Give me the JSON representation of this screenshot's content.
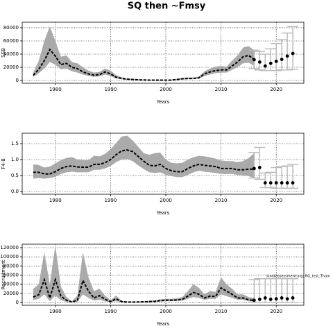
{
  "title": "SQ then ~Fmsy",
  "chart_data": [
    {
      "type": "line",
      "ylabel": "SSB",
      "xlabel": "Years",
      "x": [
        1976,
        1977,
        1978,
        1979,
        1980,
        1981,
        1982,
        1983,
        1984,
        1985,
        1986,
        1987,
        1988,
        1989,
        1990,
        1991,
        1992,
        1993,
        1994,
        1995,
        1996,
        1997,
        1998,
        1999,
        2000,
        2001,
        2002,
        2003,
        2004,
        2005,
        2006,
        2007,
        2008,
        2009,
        2010,
        2011,
        2012,
        2013,
        2014,
        2015,
        2016
      ],
      "values": [
        8000,
        17000,
        30000,
        47000,
        37000,
        24000,
        26000,
        20000,
        18000,
        13000,
        10000,
        8000,
        9000,
        13000,
        10000,
        5000,
        3000,
        2000,
        1500,
        1000,
        800,
        600,
        500,
        500,
        500,
        600,
        1500,
        2500,
        3000,
        3000,
        4000,
        10000,
        13000,
        15000,
        16000,
        16000,
        22000,
        28000,
        36000,
        38000,
        32000
      ],
      "upper": [
        12000,
        30000,
        60000,
        82000,
        60000,
        36000,
        38000,
        28000,
        26000,
        20000,
        15000,
        12000,
        13000,
        18000,
        15000,
        8000,
        5000,
        3000,
        2500,
        1800,
        1500,
        1200,
        1000,
        1000,
        1000,
        1200,
        2500,
        4000,
        4500,
        4500,
        6000,
        14000,
        18000,
        21000,
        22000,
        21000,
        30000,
        38000,
        50000,
        52000,
        46000
      ],
      "lower": [
        5000,
        11000,
        18000,
        28000,
        24000,
        17000,
        18000,
        14000,
        12000,
        9000,
        7000,
        5500,
        6000,
        9000,
        7000,
        3000,
        1800,
        1200,
        900,
        600,
        400,
        300,
        250,
        250,
        250,
        300,
        900,
        1600,
        2000,
        2000,
        2800,
        7000,
        9000,
        11000,
        12000,
        12000,
        16000,
        20000,
        26000,
        27000,
        22000
      ],
      "proj_x": [
        2016,
        2017,
        2018,
        2019,
        2020,
        2021,
        2022,
        2023
      ],
      "proj_values": [
        31500,
        28000,
        22000,
        26000,
        29000,
        32000,
        37000,
        41000
      ],
      "proj_upper": [
        46000,
        44000,
        40000,
        48000,
        56000,
        62000,
        72000,
        82000
      ],
      "proj_lower": [
        18000,
        16000,
        15000,
        15000,
        15000,
        16000,
        16000,
        17000
      ],
      "band_color": "#aaaaaa",
      "line_color": "#000000",
      "proj_color": "#bbbbbb",
      "xlim": [
        1974,
        2025
      ],
      "xticks": [
        1980,
        1990,
        2000,
        2010,
        2020
      ],
      "ylim": [
        -4200,
        88400
      ],
      "yticks": [
        0,
        20000,
        40000,
        60000,
        80000
      ],
      "grid": true
    },
    {
      "type": "line",
      "ylabel": "F4-8",
      "xlabel": "Years",
      "x": [
        1976,
        1977,
        1978,
        1979,
        1980,
        1981,
        1982,
        1983,
        1984,
        1985,
        1986,
        1987,
        1988,
        1989,
        1990,
        1991,
        1992,
        1993,
        1994,
        1995,
        1996,
        1997,
        1998,
        1999,
        2000,
        2001,
        2002,
        2003,
        2004,
        2005,
        2006,
        2007,
        2008,
        2009,
        2010,
        2011,
        2012,
        2013,
        2014,
        2015,
        2016
      ],
      "values": [
        0.6,
        0.6,
        0.55,
        0.55,
        0.62,
        0.72,
        0.78,
        0.8,
        0.77,
        0.76,
        0.76,
        0.85,
        0.85,
        0.9,
        1.0,
        1.15,
        1.27,
        1.3,
        1.25,
        1.1,
        0.95,
        0.82,
        0.8,
        0.85,
        0.72,
        0.65,
        0.62,
        0.62,
        0.72,
        0.8,
        0.85,
        0.82,
        0.8,
        0.78,
        0.72,
        0.72,
        0.72,
        0.68,
        0.68,
        0.7,
        0.7
      ],
      "upper": [
        0.85,
        0.83,
        0.75,
        0.78,
        0.88,
        0.98,
        1.05,
        1.08,
        1.0,
        0.98,
        0.98,
        1.12,
        1.1,
        1.18,
        1.32,
        1.52,
        1.72,
        1.75,
        1.6,
        1.4,
        1.2,
        1.15,
        1.2,
        1.22,
        1.0,
        0.9,
        0.88,
        0.9,
        1.0,
        1.07,
        1.12,
        1.1,
        1.07,
        1.03,
        0.97,
        0.95,
        0.95,
        0.92,
        0.95,
        1.05,
        1.2
      ],
      "lower": [
        0.4,
        0.42,
        0.4,
        0.42,
        0.46,
        0.55,
        0.6,
        0.62,
        0.6,
        0.6,
        0.6,
        0.68,
        0.68,
        0.72,
        0.8,
        0.92,
        1.0,
        1.02,
        0.95,
        0.82,
        0.7,
        0.6,
        0.58,
        0.6,
        0.52,
        0.48,
        0.45,
        0.45,
        0.52,
        0.6,
        0.65,
        0.62,
        0.6,
        0.58,
        0.55,
        0.55,
        0.55,
        0.52,
        0.5,
        0.48,
        0.42
      ],
      "proj_x": [
        2016,
        2017,
        2018,
        2019,
        2020,
        2021,
        2022,
        2023
      ],
      "proj_values": [
        0.72,
        0.75,
        0.27,
        0.27,
        0.27,
        0.27,
        0.27,
        0.27
      ],
      "proj_upper": [
        1.22,
        1.38,
        0.58,
        0.6,
        0.75,
        0.78,
        0.8,
        0.85
      ],
      "proj_lower": [
        0.42,
        0.38,
        0.12,
        0.12,
        0.1,
        0.1,
        0.1,
        0.1
      ],
      "band_color": "#aaaaaa",
      "line_color": "#000000",
      "proj_color": "#bbbbbb",
      "xlim": [
        1974,
        2025
      ],
      "xticks": [
        1980,
        1990,
        2000,
        2010,
        2020
      ],
      "ylim": [
        -0.087,
        1.826
      ],
      "yticks": [
        {
          "value": 0,
          "label": "0.0"
        },
        0.5,
        {
          "value": 1,
          "label": "1.0"
        },
        1.5
      ],
      "grid": true
    },
    {
      "type": "line",
      "ylabel": "Recruitment",
      "xlabel": "Years",
      "annotation": "stockassessment.org, RG_test_Thom",
      "x": [
        1976,
        1977,
        1978,
        1979,
        1980,
        1981,
        1982,
        1983,
        1984,
        1985,
        1986,
        1987,
        1988,
        1989,
        1990,
        1991,
        1992,
        1993,
        1994,
        1995,
        1996,
        1997,
        1998,
        1999,
        2000,
        2001,
        2002,
        2003,
        2004,
        2005,
        2006,
        2007,
        2008,
        2009,
        2010,
        2011,
        2012,
        2013,
        2014,
        2015,
        2016
      ],
      "values": [
        12000,
        17000,
        50000,
        10000,
        50000,
        14000,
        5000,
        1000,
        5000,
        48000,
        25000,
        10000,
        15000,
        7000,
        2000,
        8000,
        2000,
        1000,
        1000,
        1200,
        1500,
        2000,
        2500,
        4000,
        5000,
        5000,
        5500,
        7000,
        14000,
        22000,
        18000,
        10000,
        14000,
        13000,
        32000,
        25000,
        18000,
        10000,
        10000,
        6000,
        4000
      ],
      "upper": [
        30000,
        40000,
        110000,
        40000,
        125000,
        35000,
        12000,
        3000,
        15000,
        110000,
        55000,
        25000,
        30000,
        15000,
        5000,
        15000,
        4000,
        2000,
        2000,
        2400,
        3000,
        4000,
        5000,
        7000,
        8000,
        8000,
        9000,
        12000,
        25000,
        40000,
        32000,
        18000,
        25000,
        23000,
        55000,
        40000,
        30000,
        18000,
        18000,
        12000,
        10000
      ],
      "lower": [
        5000,
        8000,
        18000,
        3000,
        15000,
        5000,
        1500,
        300,
        1500,
        18000,
        10000,
        4000,
        6000,
        2500,
        700,
        3000,
        700,
        400,
        400,
        500,
        700,
        900,
        1200,
        2000,
        3000,
        3000,
        3200,
        4000,
        8000,
        12000,
        10000,
        6000,
        8000,
        8000,
        18000,
        14000,
        10000,
        6000,
        6000,
        3000,
        1500
      ],
      "proj_x": [
        2016,
        2017,
        2018,
        2019,
        2020,
        2021,
        2022,
        2023
      ],
      "proj_values": [
        5000,
        7000,
        10000,
        7000,
        8000,
        10000,
        8000,
        10000
      ],
      "proj_upper": [
        50000,
        52000,
        52000,
        52000,
        52000,
        52000,
        52000,
        52000
      ],
      "proj_lower": [
        500,
        500,
        500,
        500,
        500,
        500,
        500,
        500
      ],
      "band_color": "#aaaaaa",
      "line_color": "#000000",
      "proj_color": "#bbbbbb",
      "xlim": [
        1974,
        2025
      ],
      "xticks": [
        1980,
        1990,
        2000,
        2010,
        2020
      ],
      "ylim": [
        -6000,
        127600
      ],
      "yticks": [
        0,
        20000,
        40000,
        60000,
        80000,
        100000,
        120000
      ],
      "grid": true
    }
  ]
}
